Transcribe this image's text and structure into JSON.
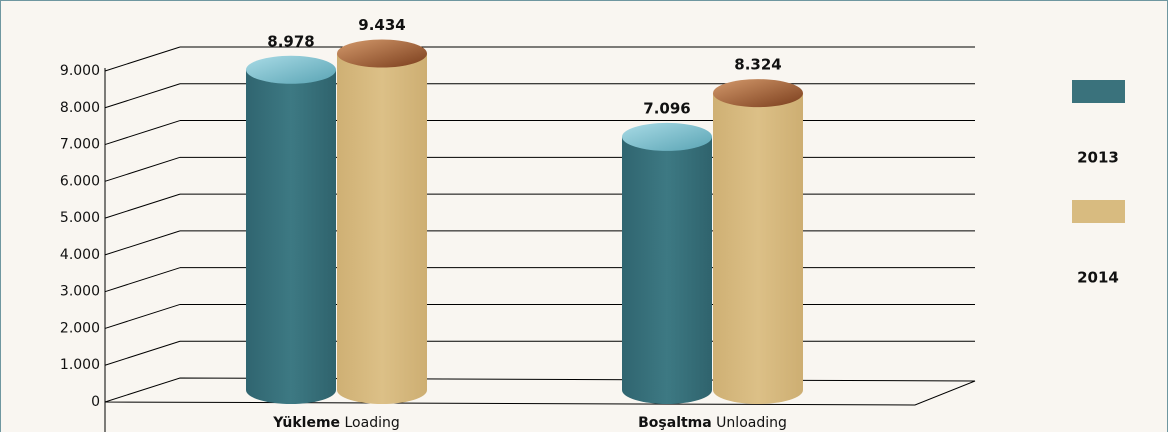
{
  "chart_data": {
    "type": "bar",
    "categories": [
      "Yükleme Loading",
      "Boşaltma Unloading"
    ],
    "series": [
      {
        "name": "2013",
        "color": "#3a727c",
        "values": [
          8978,
          7096
        ],
        "value_labels": [
          "8.978",
          "7.096"
        ]
      },
      {
        "name": "2014",
        "color": "#d8bb80",
        "values": [
          9434,
          8324
        ],
        "value_labels": [
          "9.434",
          "8.324"
        ]
      }
    ],
    "ylim": [
      0,
      9000
    ],
    "yticks": [
      0,
      {
        "value": 1000,
        "label": "1.000"
      },
      {
        "value": 2000,
        "label": "2.000"
      },
      {
        "value": 3000,
        "label": "3.000"
      },
      {
        "value": 4000,
        "label": "4.000"
      },
      {
        "value": 5000,
        "label": "5.000"
      },
      {
        "value": 6000,
        "label": "6.000"
      },
      {
        "value": 7000,
        "label": "7.000"
      },
      {
        "value": 8000,
        "label": "8.000"
      },
      {
        "value": 9000,
        "label": "9.000"
      }
    ],
    "grid": true,
    "legend": "right"
  }
}
